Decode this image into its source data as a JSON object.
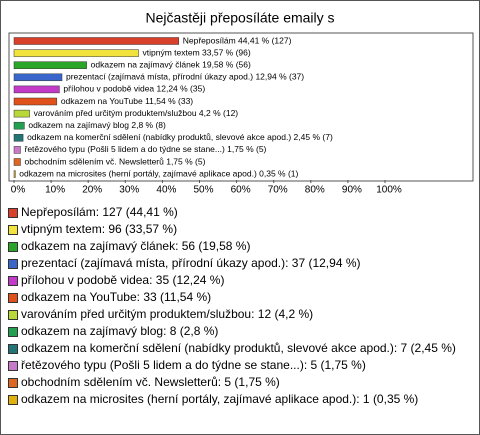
{
  "chart_data": {
    "type": "bar",
    "orientation": "horizontal",
    "title": "Nejčastěji přeposíláte emaily s",
    "values": [
      44.41,
      33.57,
      19.58,
      12.94,
      12.24,
      11.54,
      4.2,
      2.8,
      2.45,
      1.75,
      1.75,
      0.35
    ],
    "value_labels": [
      "Nepřeposílám 44,41 % (127)",
      "vtipným textem 33,57 % (96)",
      "odkazem na zajímavý článek 19,58 % (56)",
      "prezentací (zajímavá místa, přírodní úkazy apod.) 12,94 % (37)",
      "přílohou v podobě videa 12,24 % (35)",
      "odkazem na YouTube 11,54 % (33)",
      "varováním před určitým produktem/službou 4,2 % (12)",
      "odkazem na zajímavý blog 2,8 % (8)",
      "odkazem na komerční sdělení (nabídky produktů, slevové akce apod.) 2,45 % (7)",
      "řetězového typu (Pošli 5 lidem a do týdne se stane...) 1,75 % (5)",
      "obchodním sdělením vč. Newsletterů 1,75 % (5)",
      "odkazem na microsites (herní portály, zajímavé aplikace apod.) 0,35 % (1)"
    ],
    "legend_labels": [
      "Nepřeposílám: 127 (44,41 %)",
      "vtipným textem: 96 (33,57 %)",
      "odkazem na zajímavý článek: 56 (19,58 %)",
      "prezentací (zajímavá místa, přírodní úkazy apod.): 37 (12,94 %)",
      "přílohou v podobě videa: 35 (12,24 %)",
      "odkazem na YouTube: 33 (11,54 %)",
      "varováním před určitým produktem/službou: 12 (4,2 %)",
      "odkazem na zajímavý blog: 8 (2,8 %)",
      "odkazem na komerční sdělení (nabídky produktů, slevové akce apod.): 7 (2,45 %)",
      "řetězového typu (Pošli 5 lidem a do týdne se stane...): 5 (1,75 %)",
      "obchodním sdělením vč. Newsletterů: 5 (1,75 %)",
      "odkazem na microsites (herní portály, zajímavé aplikace apod.): 1 (0,35 %)"
    ],
    "colors": [
      "#d9402b",
      "#f2e33c",
      "#2aa52a",
      "#3a66cc",
      "#c43ac8",
      "#e0501a",
      "#b8d838",
      "#22a050",
      "#237575",
      "#c87ac8",
      "#dd6622",
      "#e0b010"
    ],
    "xlim": [
      0,
      100
    ],
    "xticks": [
      {
        "value": 0,
        "label": "0%"
      },
      {
        "value": 10,
        "label": "10%"
      },
      {
        "value": 20,
        "label": "20%"
      },
      {
        "value": 30,
        "label": "30%"
      },
      {
        "value": 40,
        "label": "40%"
      },
      {
        "value": 50,
        "label": "50%"
      },
      {
        "value": 60,
        "label": "60%"
      },
      {
        "value": 70,
        "label": "70%"
      },
      {
        "value": 80,
        "label": "80%"
      },
      {
        "value": 90,
        "label": "90%"
      },
      {
        "value": 100,
        "label": "100%"
      }
    ]
  }
}
